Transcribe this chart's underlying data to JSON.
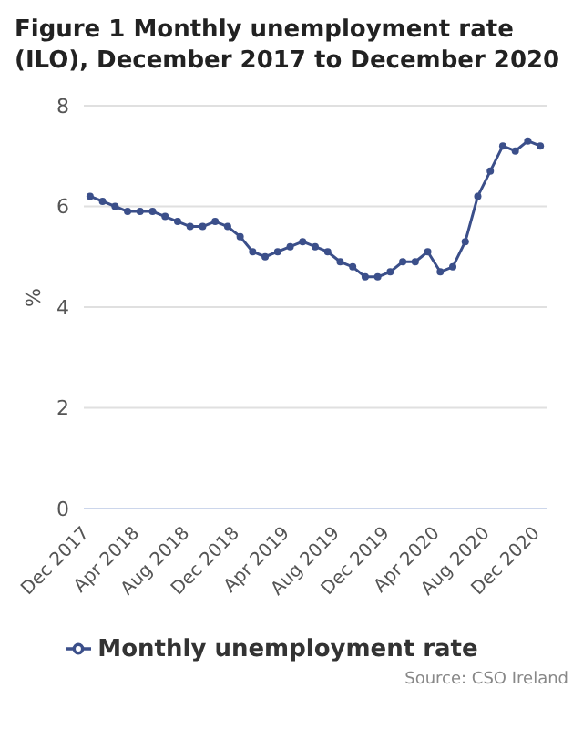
{
  "chart_data": {
    "type": "line",
    "title": "Figure 1 Monthly unemployment rate (ILO), December 2017 to December 2020",
    "categories": [
      "Dec 2017",
      null,
      null,
      null,
      "Apr 2018",
      null,
      null,
      null,
      "Aug 2018",
      null,
      null,
      null,
      "Dec 2018",
      null,
      null,
      null,
      "Apr 2019",
      null,
      null,
      null,
      "Aug 2019",
      null,
      null,
      null,
      "Dec 2019",
      null,
      null,
      null,
      "Apr 2020",
      null,
      null,
      null,
      "Aug 2020",
      null,
      null,
      null,
      "Dec 2020"
    ],
    "series": [
      {
        "name": "Monthly unemployment rate",
        "color": "#3b4f8a",
        "values": [
          6.2,
          6.1,
          6.0,
          5.9,
          5.9,
          5.9,
          5.8,
          5.7,
          5.6,
          5.6,
          5.7,
          5.6,
          5.4,
          5.1,
          5.0,
          5.1,
          5.2,
          5.3,
          5.2,
          5.1,
          4.9,
          4.8,
          4.6,
          4.6,
          4.7,
          4.9,
          4.9,
          5.1,
          4.7,
          4.8,
          5.3,
          6.2,
          6.7,
          7.2,
          7.1,
          7.3,
          7.2
        ]
      }
    ],
    "ylabel": "%",
    "ylim": [
      0,
      8
    ],
    "yticks": [
      0,
      2,
      4,
      6,
      8
    ],
    "grid": "y",
    "legend": "bottom",
    "marker": "circle",
    "line_style": "solid",
    "annotations": [
      "Source: CSO Ireland"
    ]
  }
}
